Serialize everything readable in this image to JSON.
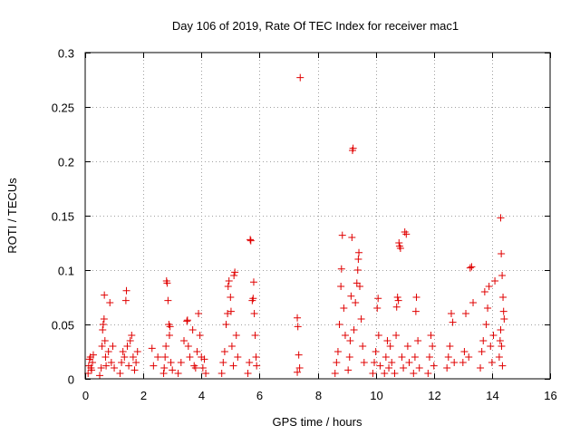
{
  "chart_data": {
    "type": "scatter",
    "title": "Day 106 of 2019, Rate Of TEC Index for receiver mac1",
    "xlabel": "GPS time / hours",
    "ylabel": "ROTI / TECUs",
    "xlim": [
      0,
      16
    ],
    "ylim": [
      0,
      0.3
    ],
    "xticks": [
      0,
      2,
      4,
      6,
      8,
      10,
      12,
      14,
      16
    ],
    "yticks": [
      0,
      0.05,
      0.1,
      0.15,
      0.2,
      0.25,
      0.3
    ],
    "xtick_labels": [
      "0",
      "2",
      "4",
      "6",
      "8",
      "10",
      "12",
      "14",
      "16"
    ],
    "ytick_labels": [
      "0",
      "0.05",
      "0.1",
      "0.15",
      "0.2",
      "0.25",
      "0.3"
    ],
    "grid": true,
    "marker": "plus",
    "color": "#e00000",
    "series": [
      {
        "name": "mac1",
        "points": [
          [
            0.1,
            0.005
          ],
          [
            0.12,
            0.012
          ],
          [
            0.15,
            0.018
          ],
          [
            0.18,
            0.02
          ],
          [
            0.2,
            0.01
          ],
          [
            0.22,
            0.008
          ],
          [
            0.25,
            0.015
          ],
          [
            0.28,
            0.022
          ],
          [
            0.5,
            0.003
          ],
          [
            0.55,
            0.01
          ],
          [
            0.58,
            0.03
          ],
          [
            0.6,
            0.045
          ],
          [
            0.62,
            0.05
          ],
          [
            0.65,
            0.055
          ],
          [
            0.68,
            0.035
          ],
          [
            0.7,
            0.02
          ],
          [
            0.72,
            0.012
          ],
          [
            0.66,
            0.077
          ],
          [
            0.85,
            0.07
          ],
          [
            0.8,
            0.025
          ],
          [
            0.9,
            0.015
          ],
          [
            0.95,
            0.03
          ],
          [
            1.0,
            0.01
          ],
          [
            1.2,
            0.005
          ],
          [
            1.25,
            0.015
          ],
          [
            1.3,
            0.025
          ],
          [
            1.35,
            0.02
          ],
          [
            1.4,
            0.072
          ],
          [
            1.42,
            0.081
          ],
          [
            1.45,
            0.03
          ],
          [
            1.5,
            0.012
          ],
          [
            1.55,
            0.035
          ],
          [
            1.6,
            0.04
          ],
          [
            1.65,
            0.02
          ],
          [
            1.7,
            0.008
          ],
          [
            1.75,
            0.015
          ],
          [
            1.8,
            0.025
          ],
          [
            2.3,
            0.028
          ],
          [
            2.35,
            0.012
          ],
          [
            2.5,
            0.02
          ],
          [
            2.7,
            0.005
          ],
          [
            2.72,
            0.01
          ],
          [
            2.75,
            0.02
          ],
          [
            2.78,
            0.03
          ],
          [
            2.8,
            0.09
          ],
          [
            2.82,
            0.088
          ],
          [
            2.85,
            0.072
          ],
          [
            2.88,
            0.05
          ],
          [
            2.9,
            0.04
          ],
          [
            2.92,
            0.048
          ],
          [
            2.95,
            0.015
          ],
          [
            3.0,
            0.008
          ],
          [
            3.2,
            0.005
          ],
          [
            3.3,
            0.015
          ],
          [
            3.4,
            0.035
          ],
          [
            3.5,
            0.053
          ],
          [
            3.52,
            0.054
          ],
          [
            3.55,
            0.03
          ],
          [
            3.6,
            0.02
          ],
          [
            3.7,
            0.045
          ],
          [
            3.75,
            0.012
          ],
          [
            3.8,
            0.01
          ],
          [
            3.85,
            0.025
          ],
          [
            3.9,
            0.06
          ],
          [
            3.95,
            0.04
          ],
          [
            4.0,
            0.02
          ],
          [
            4.05,
            0.01
          ],
          [
            4.1,
            0.018
          ],
          [
            4.15,
            0.005
          ],
          [
            4.7,
            0.005
          ],
          [
            4.75,
            0.015
          ],
          [
            4.8,
            0.025
          ],
          [
            4.85,
            0.05
          ],
          [
            4.9,
            0.06
          ],
          [
            4.92,
            0.085
          ],
          [
            4.95,
            0.09
          ],
          [
            5.0,
            0.075
          ],
          [
            5.02,
            0.062
          ],
          [
            5.05,
            0.03
          ],
          [
            5.1,
            0.012
          ],
          [
            5.12,
            0.095
          ],
          [
            5.15,
            0.098
          ],
          [
            5.2,
            0.04
          ],
          [
            5.25,
            0.02
          ],
          [
            5.6,
            0.005
          ],
          [
            5.65,
            0.015
          ],
          [
            5.68,
            0.128
          ],
          [
            5.7,
            0.127
          ],
          [
            5.75,
            0.072
          ],
          [
            5.78,
            0.074
          ],
          [
            5.8,
            0.089
          ],
          [
            5.82,
            0.06
          ],
          [
            5.85,
            0.04
          ],
          [
            5.88,
            0.02
          ],
          [
            5.9,
            0.012
          ],
          [
            7.3,
            0.056
          ],
          [
            7.32,
            0.048
          ],
          [
            7.35,
            0.022
          ],
          [
            7.38,
            0.01
          ],
          [
            7.3,
            0.006
          ],
          [
            7.4,
            0.277
          ],
          [
            8.6,
            0.005
          ],
          [
            8.65,
            0.015
          ],
          [
            8.7,
            0.025
          ],
          [
            8.75,
            0.05
          ],
          [
            8.8,
            0.085
          ],
          [
            8.82,
            0.101
          ],
          [
            8.85,
            0.132
          ],
          [
            8.9,
            0.065
          ],
          [
            8.95,
            0.04
          ],
          [
            9.05,
            0.008
          ],
          [
            9.1,
            0.02
          ],
          [
            9.12,
            0.035
          ],
          [
            9.15,
            0.076
          ],
          [
            9.18,
            0.13
          ],
          [
            9.2,
            0.21
          ],
          [
            9.22,
            0.212
          ],
          [
            9.25,
            0.045
          ],
          [
            9.3,
            0.07
          ],
          [
            9.35,
            0.088
          ],
          [
            9.38,
            0.1
          ],
          [
            9.4,
            0.11
          ],
          [
            9.42,
            0.116
          ],
          [
            9.45,
            0.085
          ],
          [
            9.5,
            0.055
          ],
          [
            9.55,
            0.03
          ],
          [
            9.6,
            0.015
          ],
          [
            9.9,
            0.005
          ],
          [
            9.95,
            0.015
          ],
          [
            10.0,
            0.025
          ],
          [
            10.05,
            0.065
          ],
          [
            10.08,
            0.074
          ],
          [
            10.1,
            0.04
          ],
          [
            10.15,
            0.012
          ],
          [
            10.3,
            0.005
          ],
          [
            10.35,
            0.02
          ],
          [
            10.4,
            0.035
          ],
          [
            10.45,
            0.01
          ],
          [
            10.5,
            0.03
          ],
          [
            10.55,
            0.015
          ],
          [
            10.65,
            0.005
          ],
          [
            10.7,
            0.04
          ],
          [
            10.72,
            0.066
          ],
          [
            10.75,
            0.075
          ],
          [
            10.78,
            0.072
          ],
          [
            10.8,
            0.125
          ],
          [
            10.82,
            0.122
          ],
          [
            10.85,
            0.12
          ],
          [
            10.9,
            0.02
          ],
          [
            10.95,
            0.01
          ],
          [
            11.0,
            0.135
          ],
          [
            11.05,
            0.133
          ],
          [
            11.1,
            0.03
          ],
          [
            11.15,
            0.015
          ],
          [
            11.3,
            0.005
          ],
          [
            11.35,
            0.02
          ],
          [
            11.38,
            0.062
          ],
          [
            11.4,
            0.075
          ],
          [
            11.45,
            0.035
          ],
          [
            11.5,
            0.01
          ],
          [
            11.8,
            0.005
          ],
          [
            11.85,
            0.02
          ],
          [
            11.9,
            0.04
          ],
          [
            11.95,
            0.03
          ],
          [
            12.0,
            0.012
          ],
          [
            12.45,
            0.01
          ],
          [
            12.5,
            0.02
          ],
          [
            12.55,
            0.03
          ],
          [
            12.6,
            0.06
          ],
          [
            12.65,
            0.052
          ],
          [
            12.7,
            0.015
          ],
          [
            13.0,
            0.015
          ],
          [
            13.05,
            0.025
          ],
          [
            13.1,
            0.06
          ],
          [
            13.2,
            0.02
          ],
          [
            13.25,
            0.102
          ],
          [
            13.3,
            0.103
          ],
          [
            13.35,
            0.07
          ],
          [
            13.6,
            0.01
          ],
          [
            13.65,
            0.025
          ],
          [
            13.7,
            0.035
          ],
          [
            13.75,
            0.08
          ],
          [
            13.8,
            0.05
          ],
          [
            13.85,
            0.065
          ],
          [
            13.9,
            0.085
          ],
          [
            13.95,
            0.03
          ],
          [
            14.0,
            0.015
          ],
          [
            14.05,
            0.04
          ],
          [
            14.1,
            0.09
          ],
          [
            14.25,
            0.02
          ],
          [
            14.28,
            0.035
          ],
          [
            14.3,
            0.148
          ],
          [
            14.32,
            0.115
          ],
          [
            14.35,
            0.095
          ],
          [
            14.38,
            0.075
          ],
          [
            14.4,
            0.062
          ],
          [
            14.42,
            0.055
          ],
          [
            14.3,
            0.045
          ],
          [
            14.33,
            0.03
          ],
          [
            14.36,
            0.012
          ]
        ]
      }
    ]
  }
}
